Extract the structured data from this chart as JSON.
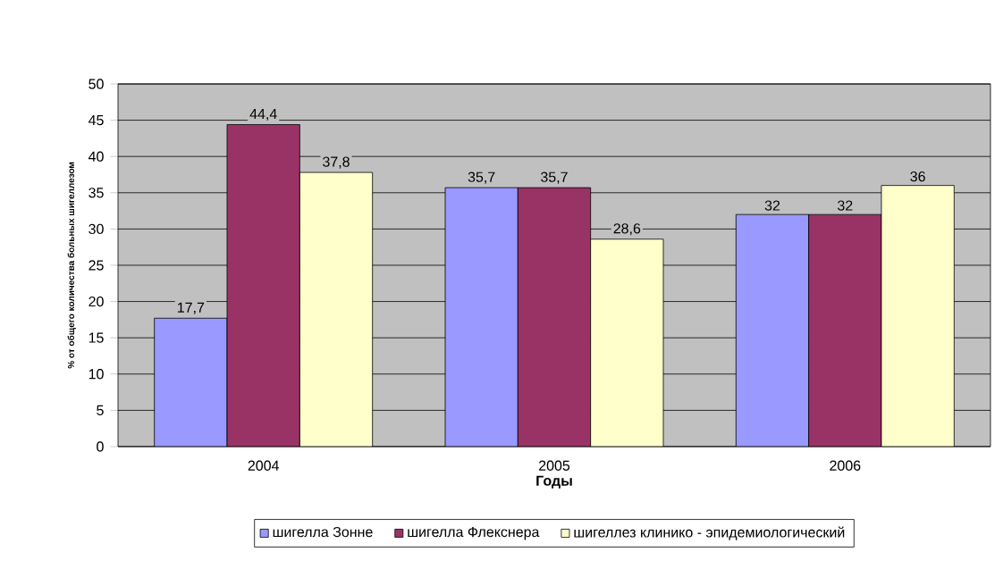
{
  "chart_data": {
    "type": "bar",
    "categories": [
      "2004",
      "2005",
      "2006"
    ],
    "xlabel": "Годы",
    "ylabel": "% от общего количества больных шигеллезом",
    "series": [
      {
        "name": "шигелла Зонне",
        "color": "#9999ff",
        "values": [
          17.7,
          35.7,
          32
        ],
        "value_labels": [
          "17,7",
          "35,7",
          "32"
        ]
      },
      {
        "name": "шигелла Флекснера",
        "color": "#993366",
        "values": [
          44.4,
          35.7,
          32
        ],
        "value_labels": [
          "44,4",
          "35,7",
          "32"
        ]
      },
      {
        "name": "шигеллез клинико - эпидемиологический",
        "color": "#ffffcc",
        "values": [
          37.8,
          28.6,
          36
        ],
        "value_labels": [
          "37,8",
          "28,6",
          "36"
        ]
      }
    ],
    "ylim": [
      0,
      50
    ],
    "yticks": [
      0,
      5,
      10,
      15,
      20,
      25,
      30,
      35,
      40,
      45,
      50
    ],
    "grid": "y",
    "legend": "bottom"
  }
}
